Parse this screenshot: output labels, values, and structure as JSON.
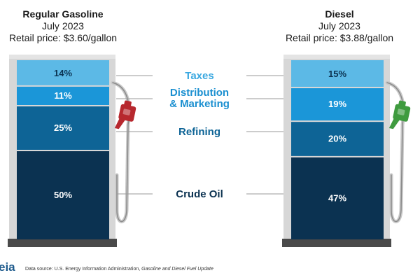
{
  "pumps": [
    {
      "title": "Regular Gasoline",
      "date": "July 2023",
      "price": "Retail price: $3.60/gallon",
      "nozzle_color": "#b7282e"
    },
    {
      "title": "Diesel",
      "date": "July 2023",
      "price": "Retail price: $3.88/gallon",
      "nozzle_color": "#3f9b3f"
    }
  ],
  "chart_data": {
    "type": "bar",
    "stacked": true,
    "categories": [
      "Regular Gasoline",
      "Diesel"
    ],
    "series": [
      {
        "name": "Crude Oil",
        "values": [
          50,
          47
        ],
        "color": "#0b3251"
      },
      {
        "name": "Refining",
        "values": [
          25,
          20
        ],
        "color": "#0e6496"
      },
      {
        "name": "Distribution & Marketing",
        "values": [
          11,
          19
        ],
        "color": "#1b96d8"
      },
      {
        "name": "Taxes",
        "values": [
          14,
          15
        ],
        "color": "#5cb9e6"
      }
    ],
    "value_labels": [
      [
        "50%",
        "25%",
        "11%",
        "14%"
      ],
      [
        "47%",
        "20%",
        "19%",
        "15%"
      ]
    ],
    "category_labels": [
      "Taxes",
      "Distribution\n& Marketing",
      "Refining",
      "Crude Oil"
    ],
    "label_colors": [
      "#3aa8e0",
      "#1a8fd0",
      "#0e6496",
      "#0b3251"
    ]
  },
  "footer": {
    "prefix": "Data source: U.S. Energy Information Administration, ",
    "source": "Gasoline and Diesel Fuel Update"
  },
  "logo": "eia"
}
